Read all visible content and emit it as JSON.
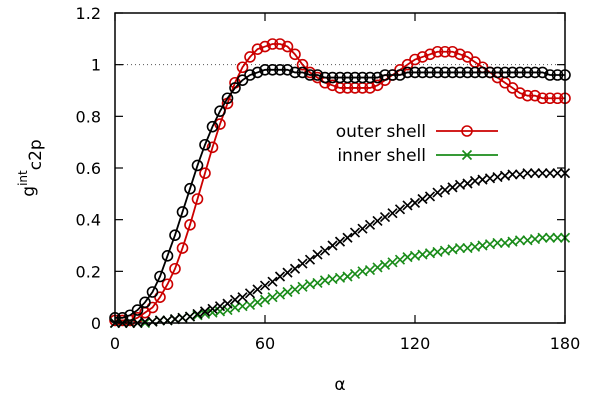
{
  "chart_data": {
    "type": "line",
    "title": "",
    "xlabel": "α",
    "ylabel": {
      "base": "g",
      "sup": "int",
      "sub": "c2p"
    },
    "xlim": [
      0,
      180
    ],
    "ylim": [
      0,
      1.2
    ],
    "xticks": [
      0,
      60,
      120,
      180
    ],
    "yticks": [
      0,
      0.2,
      0.4,
      0.6,
      0.8,
      1,
      1.2
    ],
    "xtick_labels": [
      "0",
      "60",
      "120",
      "180"
    ],
    "ytick_labels": [
      "0",
      "0.2",
      "0.4",
      "0.6",
      "0.8",
      "1",
      "1.2"
    ],
    "reference_line": {
      "y": 1,
      "style": "dotted"
    },
    "legend": {
      "placement": "center-right"
    },
    "series": [
      {
        "name": "outer shell",
        "color": "#cc0000",
        "marker": "circle",
        "in_legend": true,
        "x": [
          0,
          3,
          6,
          9,
          12,
          15,
          18,
          21,
          24,
          27,
          30,
          33,
          36,
          39,
          42,
          45,
          48,
          51,
          54,
          57,
          60,
          63,
          66,
          69,
          72,
          75,
          78,
          81,
          84,
          87,
          90,
          93,
          96,
          99,
          102,
          105,
          108,
          111,
          114,
          117,
          120,
          123,
          126,
          129,
          132,
          135,
          138,
          141,
          144,
          147,
          150,
          153,
          156,
          159,
          162,
          165,
          168,
          171,
          174,
          177,
          180
        ],
        "y": [
          0.01,
          0.01,
          0.01,
          0.02,
          0.04,
          0.06,
          0.1,
          0.15,
          0.21,
          0.29,
          0.38,
          0.48,
          0.58,
          0.68,
          0.77,
          0.85,
          0.93,
          0.99,
          1.03,
          1.06,
          1.07,
          1.08,
          1.08,
          1.07,
          1.04,
          1.0,
          0.97,
          0.95,
          0.93,
          0.92,
          0.91,
          0.91,
          0.91,
          0.91,
          0.91,
          0.92,
          0.94,
          0.96,
          0.98,
          1.0,
          1.02,
          1.03,
          1.04,
          1.05,
          1.05,
          1.05,
          1.04,
          1.03,
          1.01,
          0.99,
          0.97,
          0.95,
          0.93,
          0.91,
          0.89,
          0.88,
          0.88,
          0.87,
          0.87,
          0.87,
          0.87
        ]
      },
      {
        "name": "outer shell (black)",
        "color": "#000000",
        "marker": "circle",
        "in_legend": false,
        "x": [
          0,
          3,
          6,
          9,
          12,
          15,
          18,
          21,
          24,
          27,
          30,
          33,
          36,
          39,
          42,
          45,
          48,
          51,
          54,
          57,
          60,
          63,
          66,
          69,
          72,
          75,
          78,
          81,
          84,
          87,
          90,
          93,
          96,
          99,
          102,
          105,
          108,
          111,
          114,
          117,
          120,
          123,
          126,
          129,
          132,
          135,
          138,
          141,
          144,
          147,
          150,
          153,
          156,
          159,
          162,
          165,
          168,
          171,
          174,
          177,
          180
        ],
        "y": [
          0.02,
          0.02,
          0.03,
          0.05,
          0.08,
          0.12,
          0.18,
          0.26,
          0.34,
          0.43,
          0.52,
          0.61,
          0.69,
          0.76,
          0.82,
          0.87,
          0.91,
          0.94,
          0.96,
          0.97,
          0.98,
          0.98,
          0.98,
          0.98,
          0.97,
          0.97,
          0.96,
          0.96,
          0.95,
          0.95,
          0.95,
          0.95,
          0.95,
          0.95,
          0.95,
          0.95,
          0.96,
          0.96,
          0.96,
          0.97,
          0.97,
          0.97,
          0.97,
          0.97,
          0.97,
          0.97,
          0.97,
          0.97,
          0.97,
          0.97,
          0.97,
          0.97,
          0.97,
          0.97,
          0.97,
          0.97,
          0.97,
          0.97,
          0.96,
          0.96,
          0.96
        ]
      },
      {
        "name": "inner shell",
        "color": "#1a8c1a",
        "marker": "x",
        "in_legend": true,
        "x": [
          0,
          3,
          6,
          9,
          12,
          15,
          18,
          21,
          24,
          27,
          30,
          33,
          36,
          39,
          42,
          45,
          48,
          51,
          54,
          57,
          60,
          63,
          66,
          69,
          72,
          75,
          78,
          81,
          84,
          87,
          90,
          93,
          96,
          99,
          102,
          105,
          108,
          111,
          114,
          117,
          120,
          123,
          126,
          129,
          132,
          135,
          138,
          141,
          144,
          147,
          150,
          153,
          156,
          159,
          162,
          165,
          168,
          171,
          174,
          177,
          180
        ],
        "y": [
          0.0,
          0.0,
          0.0,
          0.0,
          0.0,
          0.005,
          0.01,
          0.01,
          0.015,
          0.02,
          0.025,
          0.03,
          0.035,
          0.04,
          0.045,
          0.05,
          0.06,
          0.065,
          0.07,
          0.08,
          0.09,
          0.1,
          0.11,
          0.12,
          0.13,
          0.14,
          0.15,
          0.155,
          0.165,
          0.17,
          0.175,
          0.18,
          0.19,
          0.2,
          0.205,
          0.215,
          0.225,
          0.235,
          0.245,
          0.255,
          0.26,
          0.265,
          0.27,
          0.275,
          0.28,
          0.285,
          0.29,
          0.29,
          0.295,
          0.3,
          0.305,
          0.31,
          0.31,
          0.315,
          0.32,
          0.32,
          0.325,
          0.33,
          0.33,
          0.33,
          0.33
        ]
      },
      {
        "name": "inner shell (black)",
        "color": "#000000",
        "marker": "x",
        "in_legend": false,
        "x": [
          0,
          3,
          6,
          9,
          12,
          15,
          18,
          21,
          24,
          27,
          30,
          33,
          36,
          39,
          42,
          45,
          48,
          51,
          54,
          57,
          60,
          63,
          66,
          69,
          72,
          75,
          78,
          81,
          84,
          87,
          90,
          93,
          96,
          99,
          102,
          105,
          108,
          111,
          114,
          117,
          120,
          123,
          126,
          129,
          132,
          135,
          138,
          141,
          144,
          147,
          150,
          153,
          156,
          159,
          162,
          165,
          168,
          171,
          174,
          177,
          180
        ],
        "y": [
          0.0,
          0.0,
          0.0,
          0.0,
          0.005,
          0.005,
          0.01,
          0.01,
          0.015,
          0.02,
          0.025,
          0.035,
          0.045,
          0.055,
          0.065,
          0.075,
          0.09,
          0.1,
          0.115,
          0.13,
          0.145,
          0.16,
          0.18,
          0.195,
          0.21,
          0.23,
          0.245,
          0.265,
          0.28,
          0.3,
          0.315,
          0.33,
          0.35,
          0.365,
          0.38,
          0.395,
          0.41,
          0.425,
          0.44,
          0.455,
          0.465,
          0.48,
          0.49,
          0.505,
          0.515,
          0.525,
          0.535,
          0.54,
          0.55,
          0.555,
          0.56,
          0.565,
          0.57,
          0.575,
          0.575,
          0.58,
          0.58,
          0.58,
          0.58,
          0.58,
          0.58
        ]
      }
    ]
  }
}
